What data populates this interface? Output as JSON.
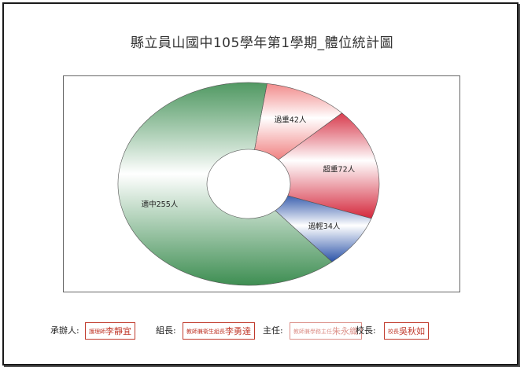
{
  "chart_data": {
    "type": "pie",
    "title": "縣立員山國中105學年第1學期_體位統計圖",
    "categories": [
      "過重",
      "超重",
      "過輕",
      "適中"
    ],
    "values": [
      42,
      72,
      34,
      255
    ],
    "unit": "人",
    "donut": true,
    "colors": {
      "過重": "#f08080",
      "超重": "#d4283c",
      "過輕": "#2a52a8",
      "適中": "#3e8e52"
    }
  },
  "signatures": [
    {
      "label": "承辦人:",
      "stamp_small": "護理師",
      "stamp_name": "李靜宜"
    },
    {
      "label": "組長:",
      "stamp_small": "教師兼衛生組長",
      "stamp_name": "李勇達"
    },
    {
      "label": "主任:",
      "stamp_small": "教師兼學務主任",
      "stamp_name": "朱永織"
    },
    {
      "label": "校長:",
      "stamp_small": "校長",
      "stamp_name": "吳秋如"
    }
  ]
}
